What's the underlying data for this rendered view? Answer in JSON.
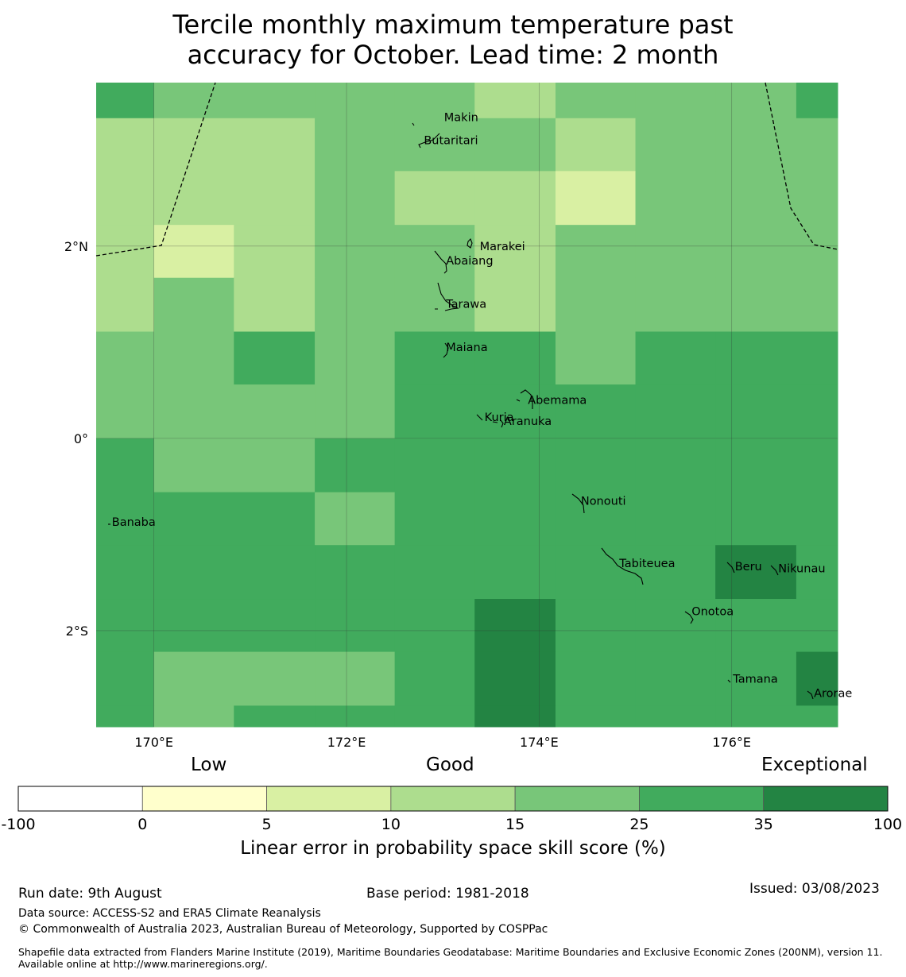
{
  "title_line1": "Tercile monthly maximum temperature past",
  "title_line2": "accuracy for October. Lead time: 2 month",
  "chart_data": {
    "type": "heatmap",
    "x_range": [
      169.4,
      177.1
    ],
    "y_range": [
      -3.0,
      3.7
    ],
    "x_ticks": [
      {
        "value": 170,
        "label": "170°E"
      },
      {
        "value": 172,
        "label": "172°E"
      },
      {
        "value": 174,
        "label": "174°E"
      },
      {
        "value": 176,
        "label": "176°E"
      }
    ],
    "y_ticks": [
      {
        "value": 2,
        "label": "2°N"
      },
      {
        "value": 0,
        "label": "0°"
      },
      {
        "value": -2,
        "label": "2°S"
      }
    ],
    "grid": true,
    "col_edges": [
      169.4,
      170.0,
      170.83,
      171.67,
      172.5,
      173.33,
      174.17,
      175.0,
      175.83,
      176.67,
      177.1
    ],
    "row_edges": [
      3.7,
      3.33,
      2.78,
      2.22,
      1.67,
      1.11,
      0.56,
      0.0,
      -0.56,
      -1.11,
      -1.67,
      -2.22,
      -2.78,
      -3.0
    ],
    "skill_class": [
      [
        5,
        4,
        4,
        4,
        4,
        3,
        4,
        4,
        4,
        5
      ],
      [
        3,
        3,
        3,
        4,
        4,
        4,
        3,
        4,
        4,
        4
      ],
      [
        3,
        3,
        3,
        4,
        3,
        3,
        2,
        4,
        4,
        4
      ],
      [
        3,
        2,
        3,
        4,
        4,
        3,
        4,
        4,
        4,
        4
      ],
      [
        3,
        4,
        3,
        4,
        4,
        3,
        4,
        4,
        4,
        4
      ],
      [
        4,
        4,
        5,
        4,
        5,
        5,
        4,
        5,
        5,
        5
      ],
      [
        4,
        4,
        4,
        4,
        5,
        5,
        5,
        5,
        5,
        5
      ],
      [
        5,
        4,
        4,
        5,
        5,
        5,
        5,
        5,
        5,
        5
      ],
      [
        5,
        5,
        5,
        4,
        5,
        5,
        5,
        5,
        5,
        5
      ],
      [
        5,
        5,
        5,
        5,
        5,
        5,
        5,
        5,
        6,
        5
      ],
      [
        5,
        5,
        5,
        5,
        5,
        6,
        5,
        5,
        5,
        5
      ],
      [
        5,
        4,
        4,
        4,
        5,
        6,
        5,
        5,
        5,
        6
      ],
      [
        5,
        4,
        5,
        5,
        5,
        6,
        5,
        5,
        5,
        5
      ]
    ],
    "islands": [
      {
        "name": "Makin",
        "lon": 172.98,
        "lat": 3.34
      },
      {
        "name": "Butaritari",
        "lon": 172.77,
        "lat": 3.1
      },
      {
        "name": "Marakei",
        "lon": 173.35,
        "lat": 2.0
      },
      {
        "name": "Abaiang",
        "lon": 173.0,
        "lat": 1.85
      },
      {
        "name": "Tarawa",
        "lon": 173.0,
        "lat": 1.4
      },
      {
        "name": "Maiana",
        "lon": 173.0,
        "lat": 0.95
      },
      {
        "name": "Abemama",
        "lon": 173.85,
        "lat": 0.4
      },
      {
        "name": "Kuria",
        "lon": 173.4,
        "lat": 0.22
      },
      {
        "name": "Aranuka",
        "lon": 173.6,
        "lat": 0.18
      },
      {
        "name": "Nonouti",
        "lon": 174.4,
        "lat": -0.65
      },
      {
        "name": "Tabiteuea",
        "lon": 174.8,
        "lat": -1.3
      },
      {
        "name": "Beru",
        "lon": 176.0,
        "lat": -1.33
      },
      {
        "name": "Nikunau",
        "lon": 176.45,
        "lat": -1.35
      },
      {
        "name": "Onotoa",
        "lon": 175.55,
        "lat": -1.8
      },
      {
        "name": "Tamana",
        "lon": 175.98,
        "lat": -2.5
      },
      {
        "name": "Arorae",
        "lon": 176.82,
        "lat": -2.65
      },
      {
        "name": "Banaba",
        "lon": 169.53,
        "lat": -0.87
      }
    ],
    "colorbar": {
      "boundaries": [
        "-100",
        "0",
        "5",
        "10",
        "15",
        "25",
        "35",
        "100"
      ],
      "colors": [
        "#ffffff",
        "#ffffcc",
        "#d9f0a3",
        "#addd8e",
        "#78c679",
        "#41ab5d",
        "#238443"
      ],
      "categories": [
        "Low",
        "Good",
        "Exceptional"
      ],
      "label": "Linear error in probability space skill score (%)"
    }
  },
  "footer": {
    "run_date": "Run date: 9th August",
    "base_period": "Base period: 1981-2018",
    "issued": "Issued: 03/08/2023",
    "data_source": "Data source: ACCESS-S2 and ERA5 Climate Reanalysis",
    "copyright": "© Commonwealth of Australia 2023, Australian Bureau of Meteorology, Supported by COSPPac",
    "shapefile": "Shapefile data extracted from Flanders Marine Institute (2019), Maritime Boundaries Geodatabase: Maritime Boundaries and Exclusive Economic Zones (200NM), version 11. Available online at http://www.marineregions.org/."
  }
}
